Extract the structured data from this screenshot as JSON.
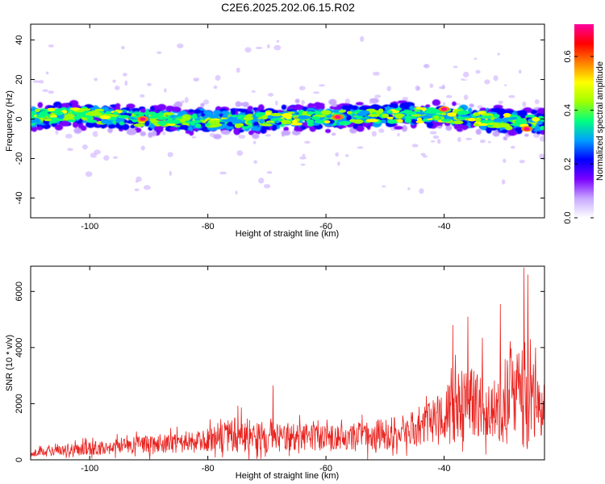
{
  "title": "C2E6.2025.202.06.15.R02",
  "chart_data": [
    {
      "type": "heatmap",
      "xlabel": "Height of straight line (km)",
      "ylabel": "Frequency (Hz)",
      "xlim": [
        -110,
        -23
      ],
      "ylim": [
        -50,
        48
      ],
      "xticks": [
        -100,
        -80,
        -60,
        -40
      ],
      "yticks": [
        -40,
        -20,
        0,
        20,
        40
      ],
      "grid": false,
      "band": {
        "center_hz": [
          [
            -110,
            1
          ],
          [
            -100,
            2
          ],
          [
            -90,
            0
          ],
          [
            -80,
            -1
          ],
          [
            -70,
            0
          ],
          [
            -60,
            1
          ],
          [
            -50,
            2
          ],
          [
            -40,
            2
          ],
          [
            -30,
            -1
          ],
          [
            -23,
            -2
          ]
        ],
        "width_hz": 14
      },
      "hotspots": [
        {
          "x": -91,
          "y": 0
        },
        {
          "x": -58,
          "y": 1
        },
        {
          "x": -40,
          "y": 5
        },
        {
          "x": -26,
          "y": -5
        }
      ],
      "colorbar": {
        "label": "Normalized spectral amplitude",
        "min": 0,
        "max": 0.72,
        "ticks": [
          "0.0",
          "0.2",
          "0.4",
          "0.6"
        ],
        "tick_values": [
          0,
          0.2,
          0.4,
          0.6
        ],
        "colors": [
          "#ffffff",
          "#c8a8ff",
          "#7a00ff",
          "#0000ff",
          "#00a0ff",
          "#00ff80",
          "#a0ff00",
          "#ffff00",
          "#ff8000",
          "#ff0000",
          "#ff00a0"
        ]
      }
    },
    {
      "type": "line",
      "xlabel": "Height of straight line (km)",
      "ylabel": "SNR (10 * v/v)",
      "xlim": [
        -110,
        -23
      ],
      "ylim": [
        0,
        6900
      ],
      "xticks": [
        -100,
        -80,
        -60,
        -40
      ],
      "yticks": [
        0,
        2000,
        4000,
        6000
      ],
      "grid": false,
      "color": "#e8231f",
      "envelope": {
        "x": [
          -110,
          -100,
          -90,
          -80,
          -75,
          -70,
          -65,
          -60,
          -55,
          -50,
          -45,
          -40,
          -37,
          -35,
          -32,
          -30,
          -28,
          -26,
          -24,
          -23
        ],
        "mean": [
          250,
          400,
          550,
          700,
          900,
          800,
          850,
          750,
          850,
          950,
          1100,
          1500,
          1900,
          2000,
          1700,
          1900,
          2400,
          2600,
          1600,
          1800
        ],
        "spread": [
          200,
          350,
          450,
          600,
          900,
          800,
          700,
          650,
          700,
          800,
          900,
          1400,
          1900,
          1800,
          1600,
          2000,
          2500,
          3200,
          1500,
          1600
        ]
      },
      "peaks": [
        {
          "x": -69,
          "y": 2650
        },
        {
          "x": -38.5,
          "y": 4800
        },
        {
          "x": -36,
          "y": 5100
        },
        {
          "x": -33.5,
          "y": 4350
        },
        {
          "x": -30.5,
          "y": 5550
        },
        {
          "x": -26.5,
          "y": 6850
        },
        {
          "x": -25.8,
          "y": 6600
        },
        {
          "x": -24.5,
          "y": 4000
        }
      ]
    }
  ]
}
